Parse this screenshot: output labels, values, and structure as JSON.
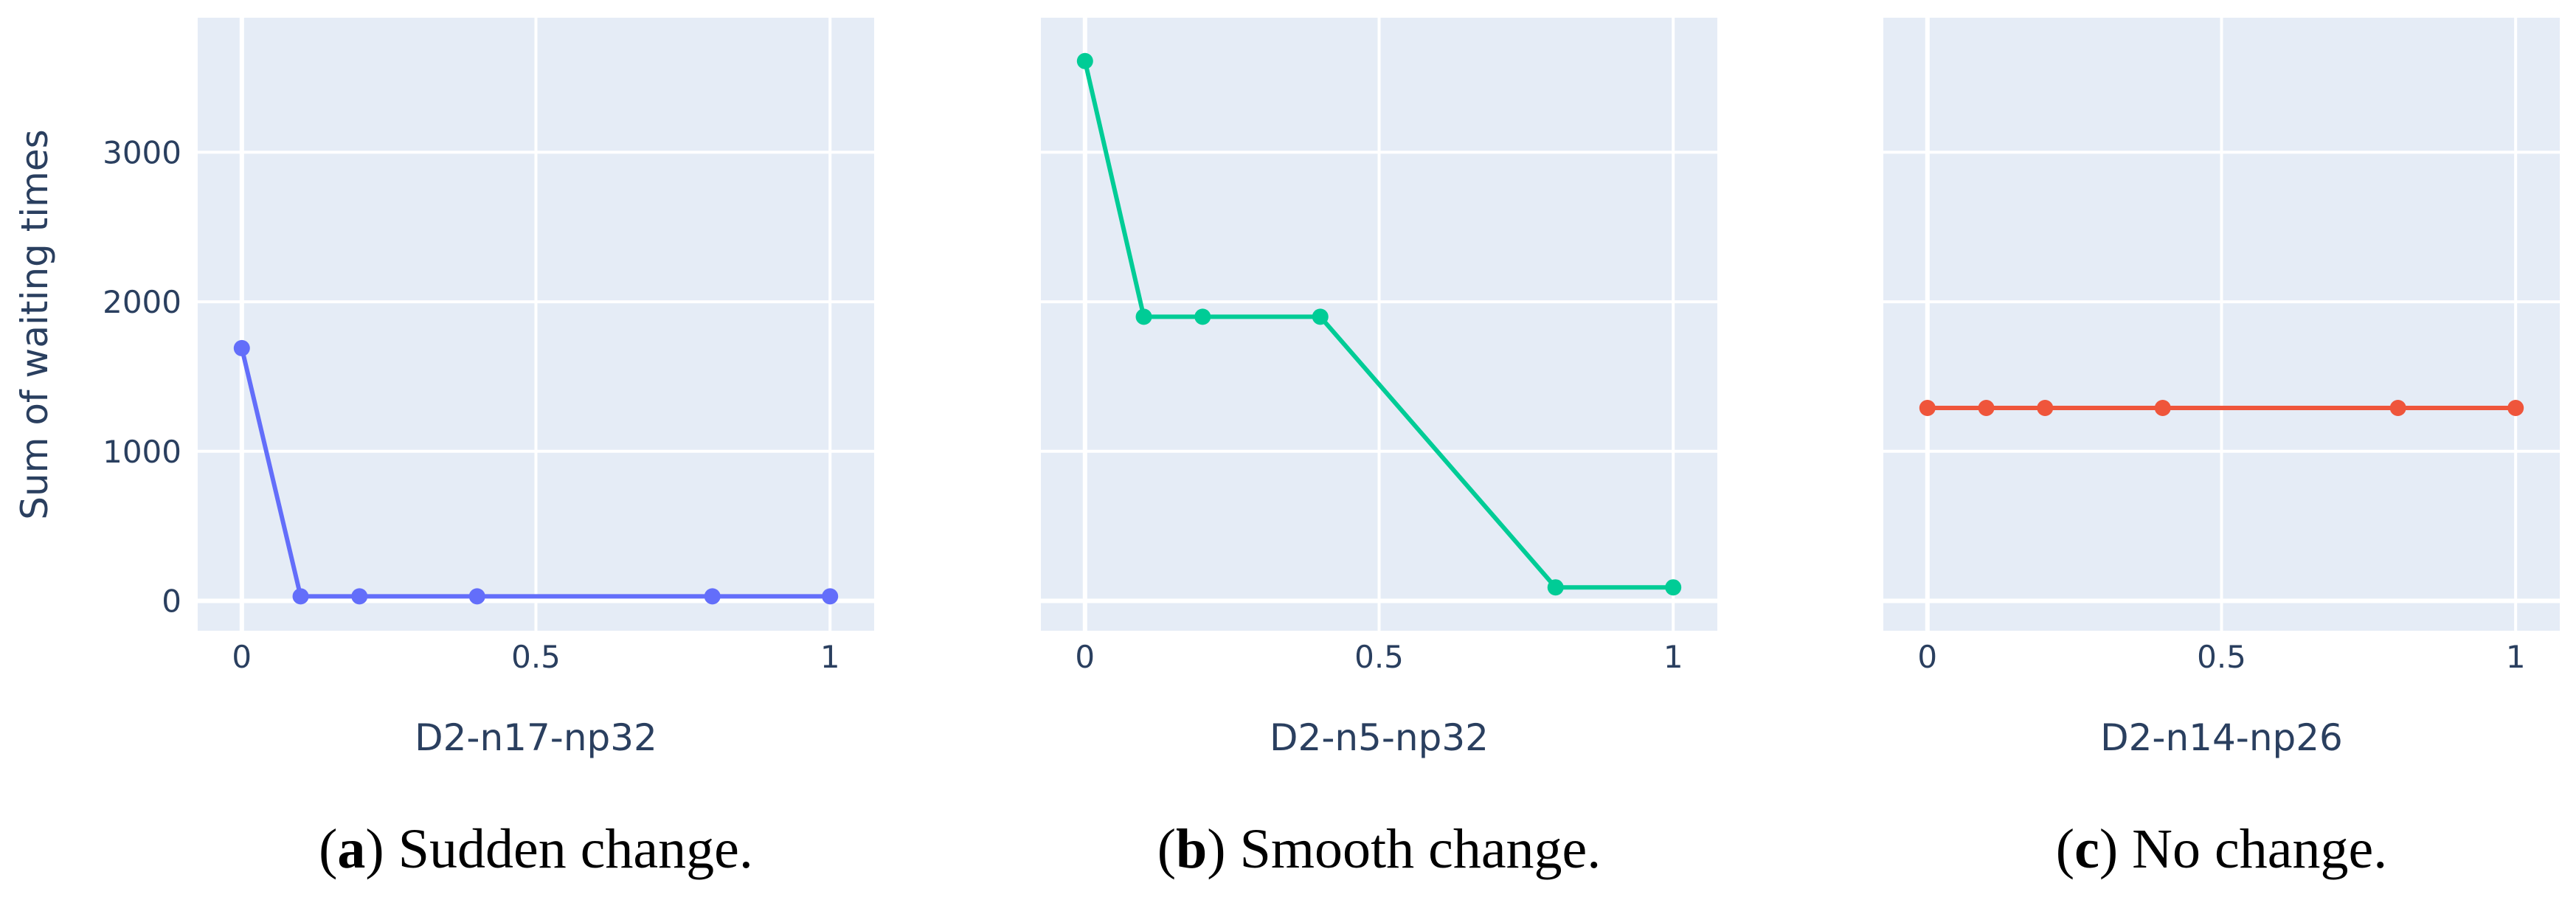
{
  "figure": {
    "shared_ylabel": "Sum of waiting times"
  },
  "chart_data": [
    {
      "type": "line",
      "xlabel": "D2-n17-np32",
      "ylabel": "Sum of waiting times",
      "x": [
        0,
        0.1,
        0.2,
        0.4,
        0.8,
        1
      ],
      "values": [
        1690,
        30,
        30,
        30,
        30,
        30
      ],
      "xlim": [
        -0.075,
        1.075
      ],
      "ylim": [
        -200,
        3900
      ],
      "xticks": [
        0,
        0.5,
        1
      ],
      "xtick_labels": [
        "0",
        "0.5",
        "1"
      ],
      "yticks": [
        0,
        1000,
        2000,
        3000
      ],
      "ytick_labels": [
        "0",
        "1000",
        "2000",
        "3000"
      ],
      "show_yticks": true,
      "color": "#636efa",
      "grid": true,
      "caption_letter": "a",
      "caption_text": " Sudden change.",
      "caption_open": "(",
      "caption_close": ")"
    },
    {
      "type": "line",
      "xlabel": "D2-n5-np32",
      "ylabel": "",
      "x": [
        0,
        0.1,
        0.2,
        0.4,
        0.8,
        1
      ],
      "values": [
        3610,
        1900,
        1900,
        1900,
        90,
        90
      ],
      "xlim": [
        -0.075,
        1.075
      ],
      "ylim": [
        -200,
        3900
      ],
      "xticks": [
        0,
        0.5,
        1
      ],
      "xtick_labels": [
        "0",
        "0.5",
        "1"
      ],
      "yticks": [
        0,
        1000,
        2000,
        3000
      ],
      "ytick_labels": [
        "0",
        "1000",
        "2000",
        "3000"
      ],
      "show_yticks": false,
      "color": "#00cc96",
      "grid": true,
      "caption_letter": "b",
      "caption_text": " Smooth change.",
      "caption_open": "(",
      "caption_close": ")"
    },
    {
      "type": "line",
      "xlabel": "D2-n14-np26",
      "ylabel": "",
      "x": [
        0,
        0.1,
        0.2,
        0.4,
        0.8,
        1
      ],
      "values": [
        1290,
        1290,
        1290,
        1290,
        1290,
        1290
      ],
      "xlim": [
        -0.075,
        1.075
      ],
      "ylim": [
        -200,
        3900
      ],
      "xticks": [
        0,
        0.5,
        1
      ],
      "xtick_labels": [
        "0",
        "0.5",
        "1"
      ],
      "yticks": [
        0,
        1000,
        2000,
        3000
      ],
      "ytick_labels": [
        "0",
        "1000",
        "2000",
        "3000"
      ],
      "show_yticks": false,
      "color": "#ef553b",
      "grid": true,
      "caption_letter": "c",
      "caption_text": " No change.",
      "caption_open": "(",
      "caption_close": ")"
    }
  ]
}
